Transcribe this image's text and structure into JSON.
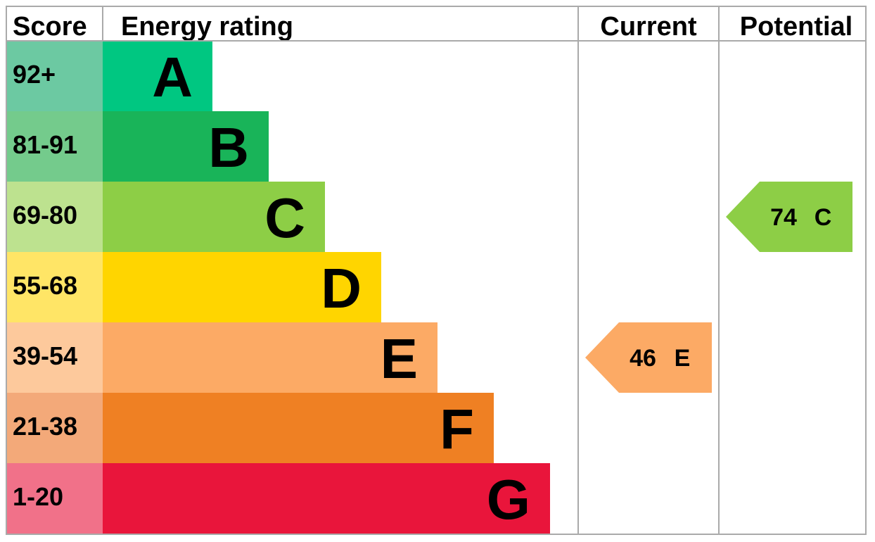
{
  "chart_data": {
    "type": "bar",
    "headers": {
      "score": "Score",
      "rating": "Energy rating",
      "current": "Current",
      "potential": "Potential"
    },
    "bands": [
      {
        "letter": "A",
        "range": "92+",
        "bar_color": "#00c781",
        "score_color": "#6cc9a2"
      },
      {
        "letter": "B",
        "range": "81-91",
        "bar_color": "#19b459",
        "score_color": "#74cb8c"
      },
      {
        "letter": "C",
        "range": "69-80",
        "bar_color": "#8dce46",
        "score_color": "#bde28f"
      },
      {
        "letter": "D",
        "range": "55-68",
        "bar_color": "#ffd500",
        "score_color": "#ffe566"
      },
      {
        "letter": "E",
        "range": "39-54",
        "bar_color": "#fcaa65",
        "score_color": "#fdc99c"
      },
      {
        "letter": "F",
        "range": "21-38",
        "bar_color": "#ef8023",
        "score_color": "#f3a979"
      },
      {
        "letter": "G",
        "range": "1-20",
        "bar_color": "#e9153b",
        "score_color": "#f17189"
      }
    ],
    "current": {
      "score": "46",
      "letter": "E",
      "color": "#fcaa65"
    },
    "potential": {
      "score": "74",
      "letter": "C",
      "color": "#8dce46"
    }
  }
}
